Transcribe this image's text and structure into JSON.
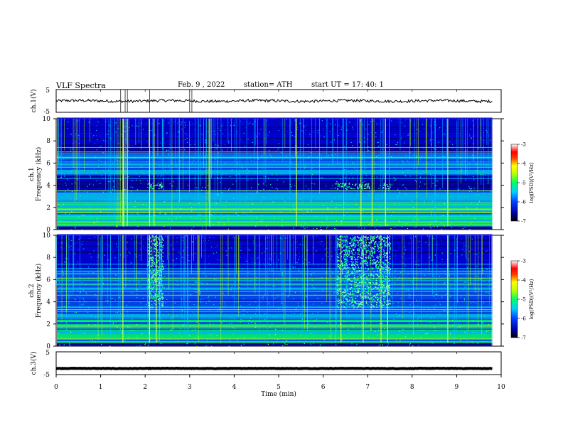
{
  "header": {
    "title": "VLF  Spectra",
    "date": "Feb. 9  , 2022",
    "station": "station= ATH",
    "start": "start  UT  =    17: 40: 1"
  },
  "colors": {
    "spectrogram_palette": [
      "#000040",
      "#00008c",
      "#0000e6",
      "#0050ff",
      "#00c8ff",
      "#00ff80",
      "#b4ff00",
      "#ffff00",
      "#ff8000",
      "#ff0000",
      "#ff9090",
      "#ffffff"
    ]
  },
  "chart_data": [
    {
      "type": "line",
      "name": "ch1-waveform",
      "ylabel": "ch.1(V)",
      "ylim": [
        -5,
        5
      ],
      "y_ticks": [
        "5",
        "-5"
      ],
      "xlim": [
        0,
        10
      ],
      "baseline": 0,
      "noise_amplitude": 0.6
    },
    {
      "type": "heatmap",
      "name": "ch1-spectrogram",
      "ylabel": "ch.1\nFrequency  (kHz)",
      "xlim": [
        0,
        10
      ],
      "data_end_min": 9.8,
      "ylim": [
        0,
        10
      ],
      "y_ticks": [
        "0",
        "2",
        "4",
        "6",
        "8",
        "10"
      ],
      "colorbar": {
        "label": "log(PSD)(V²/Hz)",
        "range": [
          -7,
          -3
        ],
        "ticks": [
          "-3",
          "-4",
          "-5",
          "-6",
          "-7"
        ]
      },
      "bright_patches": [
        {
          "t": [
            2.05,
            2.38
          ],
          "f": [
            3.7,
            4.3
          ]
        },
        {
          "t": [
            6.25,
            7.05
          ],
          "f": [
            3.7,
            4.2
          ]
        },
        {
          "t": [
            7.3,
            7.5
          ],
          "f": [
            3.7,
            4.2
          ]
        }
      ],
      "noise_bursts_min": [
        1.5,
        1.52,
        1.6,
        2.1,
        2.2,
        3.45,
        5.4,
        6.85,
        7.1,
        7.4,
        8.8
      ]
    },
    {
      "type": "heatmap",
      "name": "ch2-spectrogram",
      "ylabel": "ch.2\nFrequency  (kHz)",
      "xlim": [
        0,
        10
      ],
      "data_end_min": 9.8,
      "ylim": [
        0,
        10
      ],
      "y_ticks": [
        "0",
        "2",
        "4",
        "6",
        "8",
        "10"
      ],
      "colorbar": {
        "label": "log(PSD)(V²/Hz)",
        "range": [
          -7,
          -3
        ],
        "ticks": [
          "-3",
          "-4",
          "-5",
          "-6",
          "-7"
        ]
      },
      "bright_patches": [
        {
          "t": [
            2.05,
            2.4
          ],
          "f": [
            3.5,
            10
          ]
        },
        {
          "t": [
            6.3,
            7.5
          ],
          "f": [
            3.5,
            10
          ]
        }
      ],
      "noise_bursts_min": [
        1.5,
        2.1,
        2.25,
        6.4,
        6.9,
        7.3,
        7.45,
        8.8
      ]
    },
    {
      "type": "line",
      "name": "ch3-waveform",
      "ylabel": "ch.3(V)",
      "ylim": [
        -5,
        5
      ],
      "y_ticks": [
        "5",
        "-5"
      ],
      "xlim": [
        0,
        10
      ],
      "baseline": -2.3,
      "noise_amplitude": 0.1,
      "xlabel": "Time  (min)",
      "x_ticks": [
        "0",
        "1",
        "2",
        "3",
        "4",
        "5",
        "6",
        "7",
        "8",
        "9",
        "10"
      ]
    }
  ]
}
